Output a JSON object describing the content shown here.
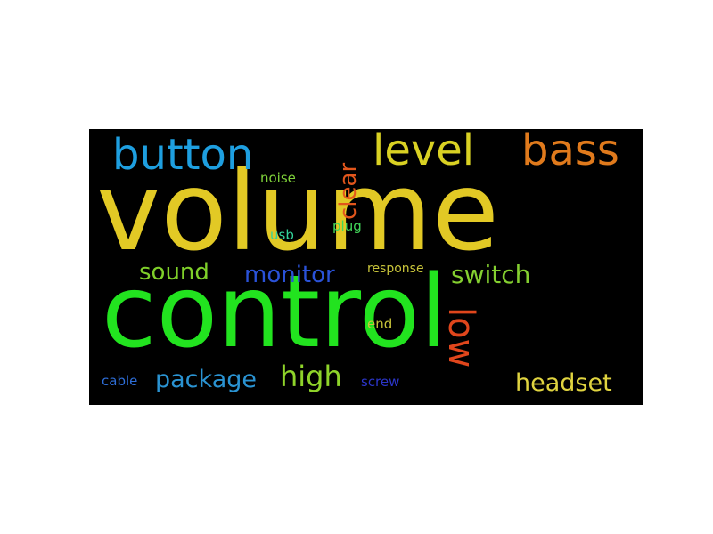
{
  "words": {
    "volume": {
      "text": "volume",
      "color": "#e2c925"
    },
    "control": {
      "text": "control",
      "color": "#22e31f"
    },
    "button": {
      "text": "button",
      "color": "#1e9fe0"
    },
    "level": {
      "text": "level",
      "color": "#d9d123"
    },
    "bass": {
      "text": "bass",
      "color": "#e07a1c"
    },
    "clear": {
      "text": "clear",
      "color": "#e2561c"
    },
    "noise": {
      "text": "noise",
      "color": "#7fd23a"
    },
    "usb": {
      "text": "usb",
      "color": "#33d39a"
    },
    "plug": {
      "text": "plug",
      "color": "#42d85a"
    },
    "sound": {
      "text": "sound",
      "color": "#7fcf2a"
    },
    "monitor": {
      "text": "monitor",
      "color": "#2a52d8"
    },
    "response": {
      "text": "response",
      "color": "#c8c43a"
    },
    "switch": {
      "text": "switch",
      "color": "#84cf30"
    },
    "low": {
      "text": "low",
      "color": "#e0461c"
    },
    "end": {
      "text": "end",
      "color": "#c8c43a"
    },
    "package": {
      "text": "package",
      "color": "#2a93d2"
    },
    "high": {
      "text": "high",
      "color": "#8fd42a"
    },
    "headset": {
      "text": "headset",
      "color": "#e0d440"
    },
    "cable": {
      "text": "cable",
      "color": "#2e6ed8"
    },
    "screw": {
      "text": "screw",
      "color": "#2b35c8"
    }
  }
}
